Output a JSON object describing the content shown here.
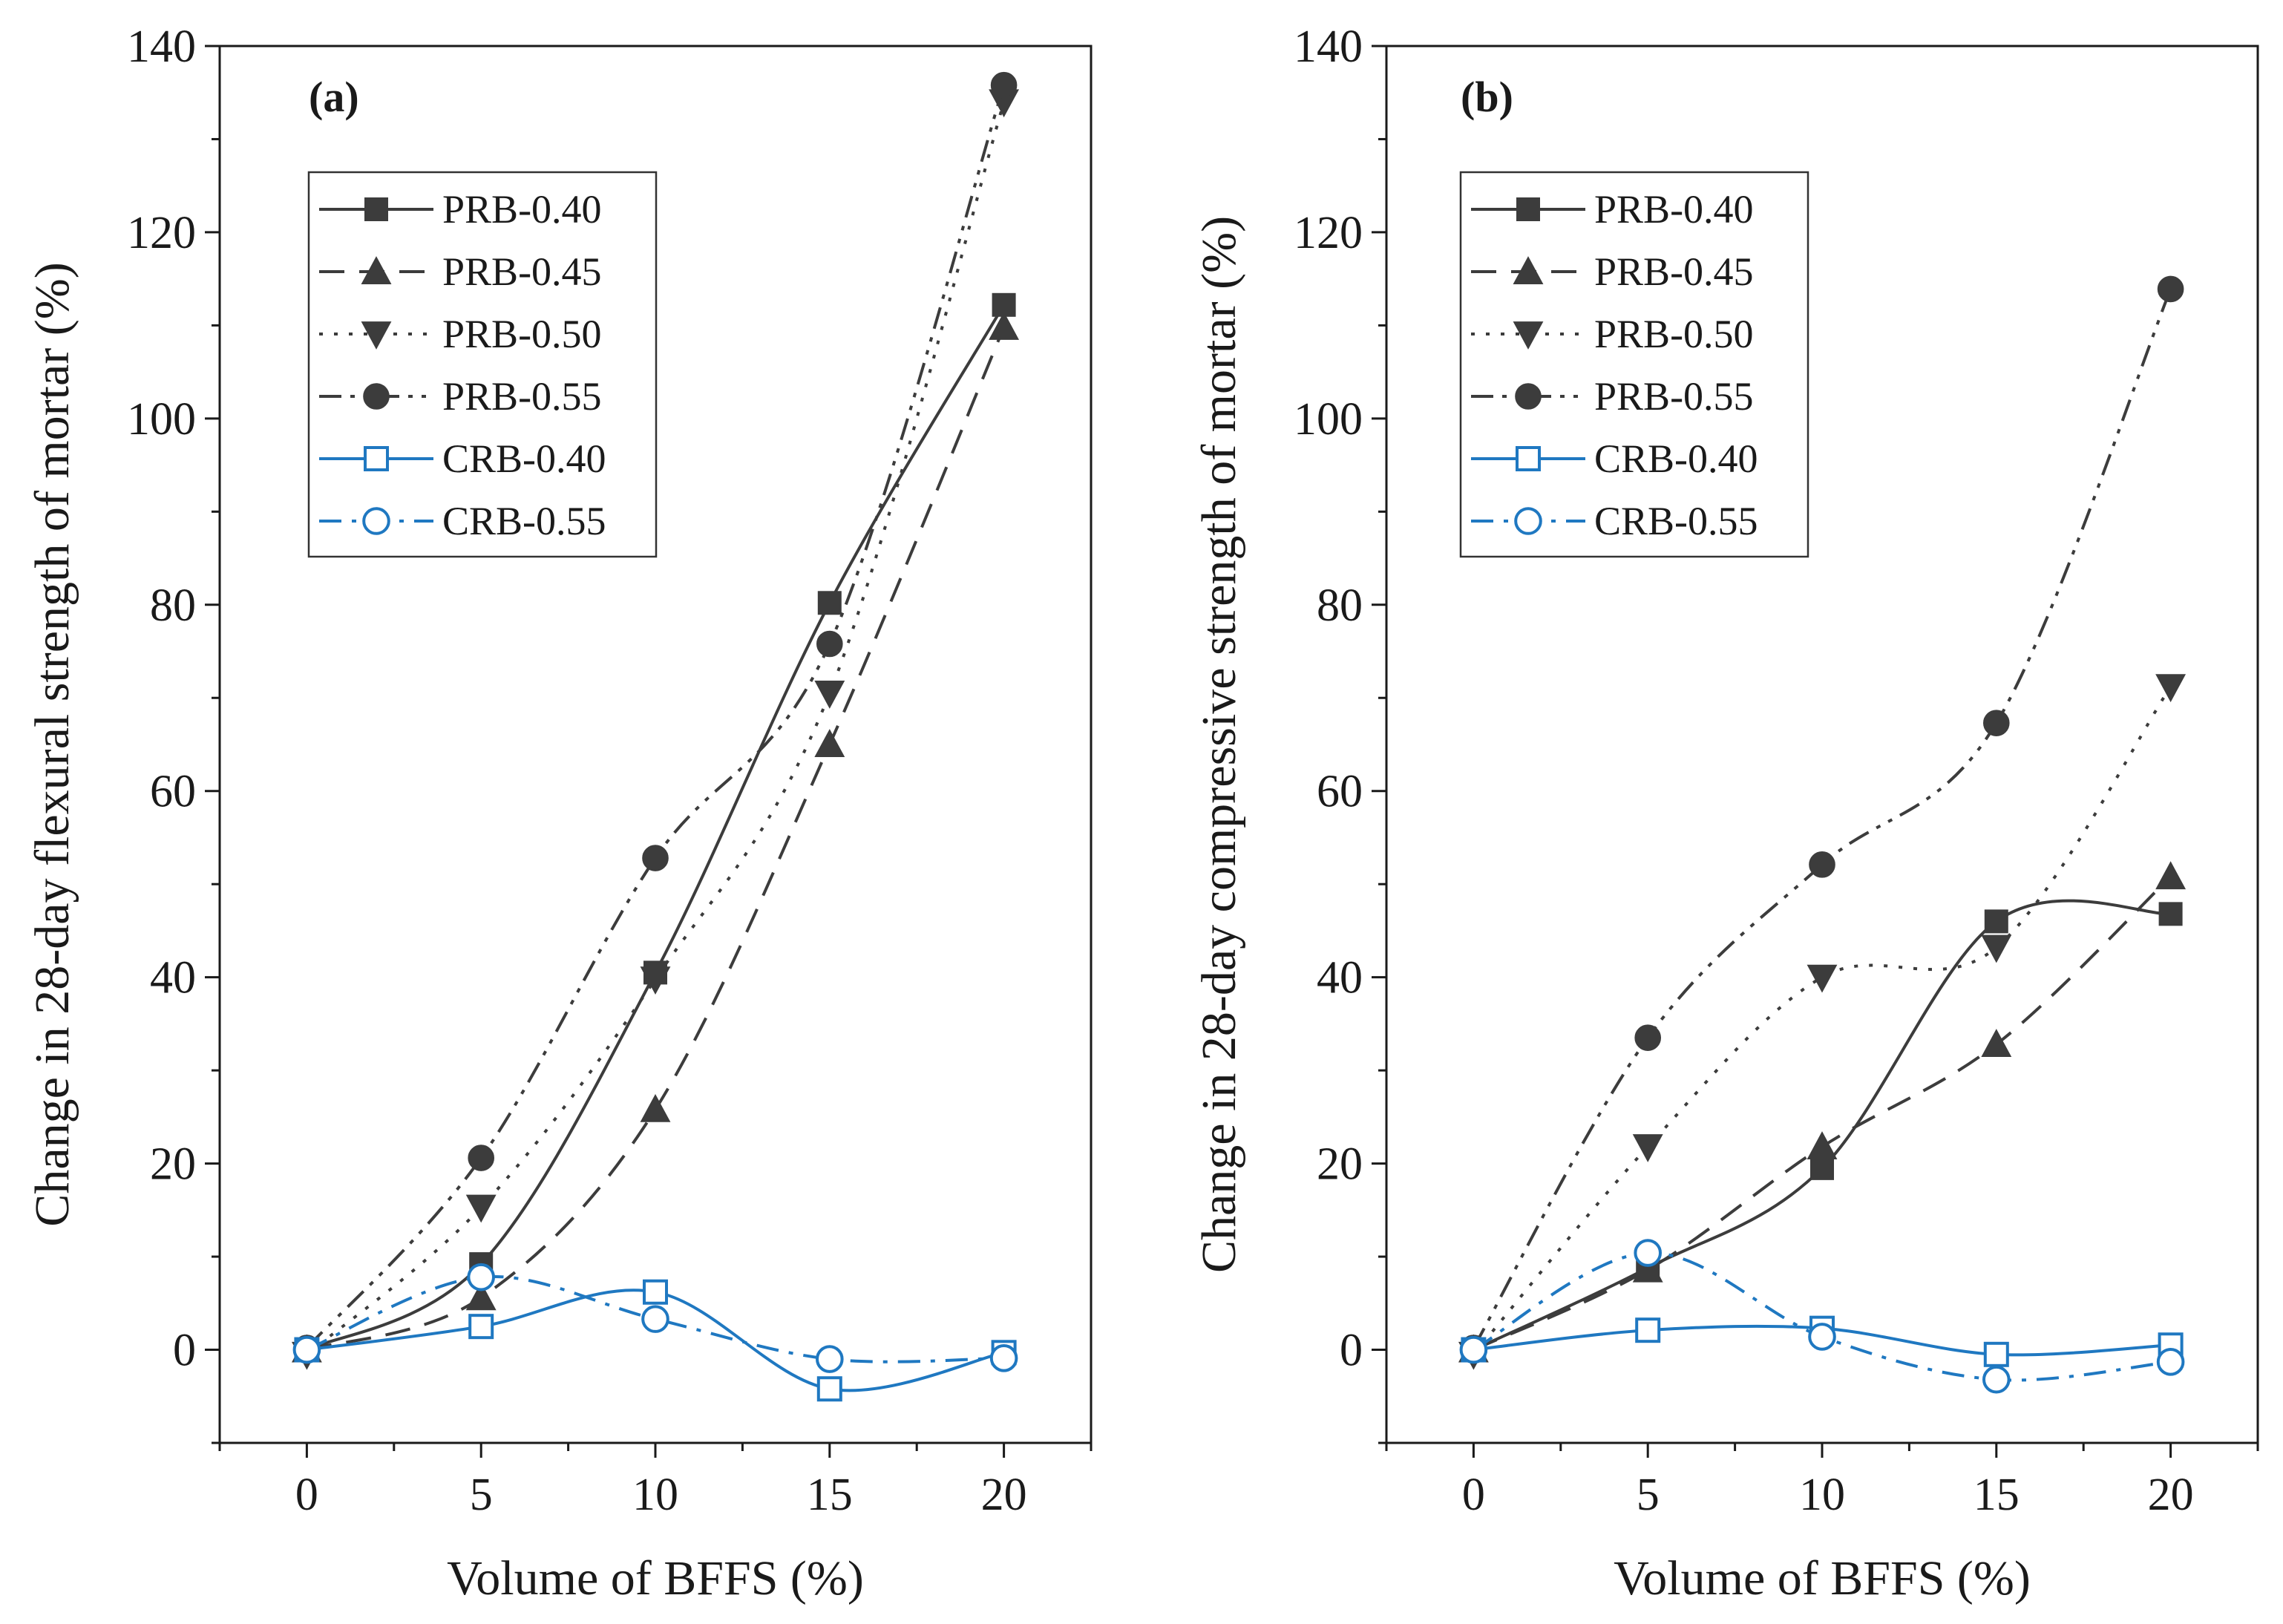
{
  "colors": {
    "prb": "#3c3c3c",
    "crb": "#1f78c1",
    "axis": "#1a1a1a"
  },
  "chart_data": [
    {
      "type": "line",
      "panel_label": "(a)",
      "xlabel": "Volume of BFFS (%)",
      "ylabel": "Change in 28-day flexural strength of mortar (%)",
      "xlim": [
        -2.5,
        22.5
      ],
      "ylim": [
        -10,
        140
      ],
      "xticks": [
        0,
        5,
        10,
        15,
        20
      ],
      "yticks": [
        0,
        20,
        40,
        60,
        80,
        100,
        120,
        140
      ],
      "legend_position": "upper-left",
      "x": [
        0,
        5,
        10,
        15,
        20
      ],
      "series": [
        {
          "name": "PRB-0.40",
          "marker": "square-filled",
          "dash": "solid",
          "color": "#3c3c3c",
          "values": [
            0,
            9.2,
            40.5,
            80.2,
            112.2
          ]
        },
        {
          "name": "PRB-0.45",
          "marker": "triangle-up-filled",
          "dash": "dash",
          "color": "#3c3c3c",
          "values": [
            0,
            5.6,
            25.8,
            65.0,
            109.8
          ]
        },
        {
          "name": "PRB-0.50",
          "marker": "triangle-down-filled",
          "dash": "dot",
          "color": "#3c3c3c",
          "values": [
            -0.5,
            15.3,
            39.8,
            70.5,
            134.0
          ]
        },
        {
          "name": "PRB-0.55",
          "marker": "circle-filled",
          "dash": "dashdotdot",
          "color": "#3c3c3c",
          "values": [
            0.2,
            20.6,
            52.8,
            75.8,
            135.8
          ]
        },
        {
          "name": "CRB-0.40",
          "marker": "square-open",
          "dash": "solid",
          "color": "#1f78c1",
          "values": [
            0,
            2.5,
            6.2,
            -4.2,
            -0.3
          ]
        },
        {
          "name": "CRB-0.55",
          "marker": "circle-open",
          "dash": "dashdot",
          "color": "#1f78c1",
          "values": [
            0,
            7.8,
            3.3,
            -1.0,
            -0.9
          ]
        }
      ]
    },
    {
      "type": "line",
      "panel_label": "(b)",
      "xlabel": "Volume of BFFS (%)",
      "ylabel": "Change in 28-day compressive strength of mortar (%)",
      "xlim": [
        -2.5,
        22.5
      ],
      "ylim": [
        -10,
        140
      ],
      "xticks": [
        0,
        5,
        10,
        15,
        20
      ],
      "yticks": [
        0,
        20,
        40,
        60,
        80,
        100,
        120,
        140
      ],
      "legend_position": "upper-left",
      "x": [
        0,
        5,
        10,
        15,
        20
      ],
      "series": [
        {
          "name": "PRB-0.40",
          "marker": "square-filled",
          "dash": "solid",
          "color": "#3c3c3c",
          "values": [
            0,
            8.8,
            19.5,
            46.0,
            46.8
          ]
        },
        {
          "name": "PRB-0.45",
          "marker": "triangle-up-filled",
          "dash": "dash",
          "color": "#3c3c3c",
          "values": [
            0,
            8.6,
            21.8,
            32.8,
            50.8
          ]
        },
        {
          "name": "PRB-0.50",
          "marker": "triangle-down-filled",
          "dash": "dot",
          "color": "#3c3c3c",
          "values": [
            -0.5,
            21.8,
            40.0,
            43.2,
            71.2
          ]
        },
        {
          "name": "PRB-0.55",
          "marker": "circle-filled",
          "dash": "dashdotdot",
          "color": "#3c3c3c",
          "values": [
            0.2,
            33.5,
            52.1,
            67.3,
            113.9
          ]
        },
        {
          "name": "CRB-0.40",
          "marker": "square-open",
          "dash": "solid",
          "color": "#1f78c1",
          "values": [
            0,
            2.1,
            2.3,
            -0.5,
            0.5
          ]
        },
        {
          "name": "CRB-0.55",
          "marker": "circle-open",
          "dash": "dashdot",
          "color": "#1f78c1",
          "values": [
            0,
            10.4,
            1.4,
            -3.2,
            -1.3
          ]
        }
      ]
    }
  ]
}
